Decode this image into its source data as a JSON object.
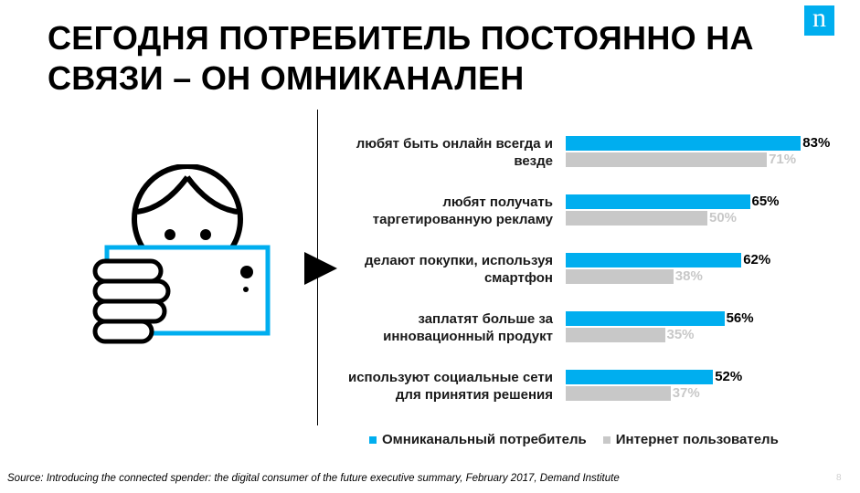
{
  "title": "СЕГОДНЯ ПОТРЕБИТЕЛЬ ПОСТОЯННО НА СВЯЗИ – ОН ОМНИКАНАЛЕН",
  "logo_letter": "n",
  "colors": {
    "omni": "#00aeef",
    "internet": "#c8c8c8"
  },
  "chart_data": {
    "type": "bar",
    "orientation": "horizontal",
    "xlim": [
      0,
      100
    ],
    "value_format": "percent",
    "categories": [
      "любят быть онлайн всегда и везде",
      "любят получать таргетированную рекламу",
      "делают покупки, используя смартфон",
      "заплатят больше за инновационный продукт",
      "используют социальные сети для принятия решения"
    ],
    "series": [
      {
        "name": "Омниканальный потребитель",
        "values": [
          83,
          65,
          62,
          56,
          52
        ],
        "labels": [
          "83%",
          "65%",
          "62%",
          "56%",
          "52%"
        ]
      },
      {
        "name": "Интернет пользователь",
        "values": [
          71,
          50,
          38,
          35,
          37
        ],
        "labels": [
          "71%",
          "50%",
          "38%",
          "35%",
          "37%"
        ]
      }
    ],
    "legend_position": "bottom",
    "grid": false
  },
  "source": "Source: Introducing the connected spender: the digital consumer of the future executive summary, February 2017, Demand Institute",
  "page_number": "8"
}
